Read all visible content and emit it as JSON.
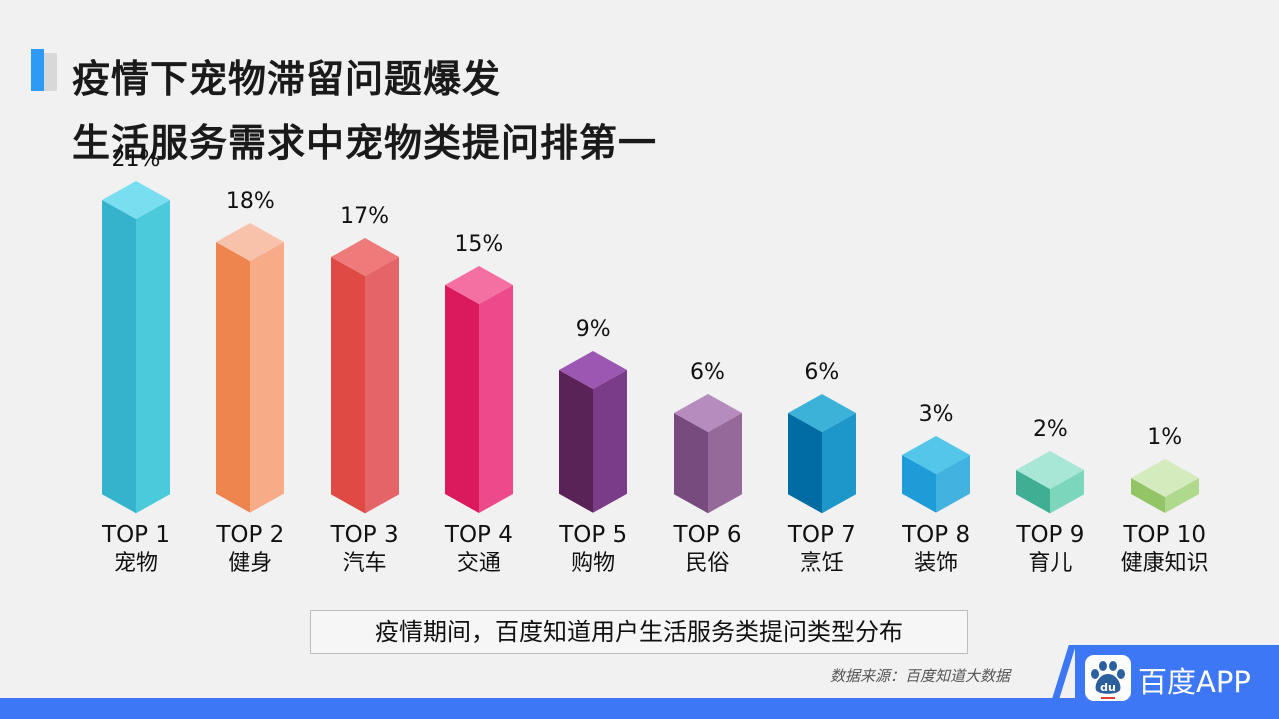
{
  "header": {
    "title_line1": "疫情下宠物滞留问题爆发",
    "title_line2": "生活服务需求中宠物类提问排第一"
  },
  "caption": "疫情期间，百度知道用户生活服务类提问类型分布",
  "source": "数据来源：百度知道大数据",
  "logo": {
    "icon": "baidu-paw-icon",
    "icon_text": "du",
    "text": "百度APP"
  },
  "colors": {
    "accent": "#2d9bf5",
    "footer": "#3d77f5"
  },
  "chart_data": {
    "type": "bar",
    "title": "疫情期间，百度知道用户生活服务类提问类型分布",
    "categories": [
      "宠物",
      "健身",
      "汽车",
      "交通",
      "购物",
      "民俗",
      "烹饪",
      "装饰",
      "育儿",
      "健康知识"
    ],
    "ranks": [
      "TOP 1",
      "TOP 2",
      "TOP 3",
      "TOP 4",
      "TOP 5",
      "TOP 6",
      "TOP 7",
      "TOP 8",
      "TOP 9",
      "TOP 10"
    ],
    "values": [
      21,
      18,
      17,
      15,
      9,
      6,
      6,
      3,
      2,
      1
    ],
    "labels": [
      "21%",
      "18%",
      "17%",
      "15%",
      "9%",
      "6%",
      "6%",
      "3%",
      "2%",
      "1%"
    ],
    "xlabel": "",
    "ylabel": "",
    "grid": false,
    "legend": "none",
    "style": "3d-isometric",
    "bar_colors": [
      {
        "left": "#36b3cc",
        "right": "#4bcadb",
        "top": "#79def0"
      },
      {
        "left": "#ee854f",
        "right": "#f8ab87",
        "top": "#f8c2aa"
      },
      {
        "left": "#e04a44",
        "right": "#e46468",
        "top": "#ef7a7a"
      },
      {
        "left": "#da1a5d",
        "right": "#ec4a8a",
        "top": "#f46fa2"
      },
      {
        "left": "#5a2358",
        "right": "#7a3b88",
        "top": "#9b57b1"
      },
      {
        "left": "#774b7e",
        "right": "#956999",
        "top": "#b68bbd"
      },
      {
        "left": "#016ca3",
        "right": "#1d96c9",
        "top": "#3db2d9"
      },
      {
        "left": "#1e9cd8",
        "right": "#42b3e0",
        "top": "#54c6ea"
      },
      {
        "left": "#3fae93",
        "right": "#7bd6bc",
        "top": "#a8e6d5"
      },
      {
        "left": "#93c566",
        "right": "#afd98c",
        "top": "#d3ebbd"
      }
    ]
  }
}
